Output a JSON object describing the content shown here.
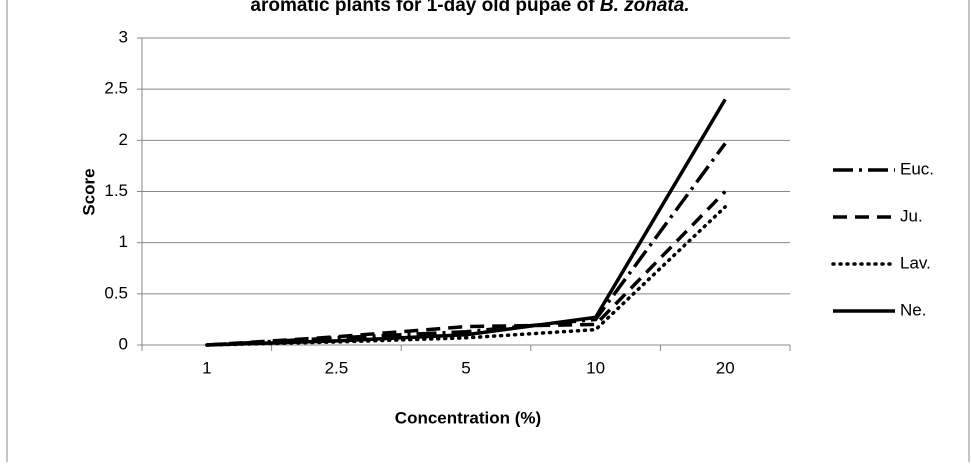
{
  "chart_data": {
    "type": "line",
    "title": "aromatic plants for 1-day old pupae of",
    "title_species": "B. zonata.",
    "x_label": "Concentration (%)",
    "y_label": "Score",
    "categories": [
      "1",
      "2.5",
      "5",
      "10",
      "20"
    ],
    "series": [
      {
        "name": "Euc.",
        "color": "#000000",
        "dash": "20,6,3,6",
        "values": [
          0,
          0.07,
          0.13,
          0.25,
          1.97
        ]
      },
      {
        "name": "Ju.",
        "color": "#000000",
        "dash": "14,8",
        "values": [
          0,
          0.08,
          0.18,
          0.2,
          1.5
        ]
      },
      {
        "name": "Lav.",
        "color": "#000000",
        "dash": "1,6",
        "values": [
          0,
          0.03,
          0.07,
          0.15,
          1.35
        ]
      },
      {
        "name": "Ne.",
        "color": "#000000",
        "dash": "",
        "values": [
          0,
          0.04,
          0.1,
          0.27,
          2.4
        ]
      }
    ],
    "ylim": [
      0,
      3
    ],
    "yticks": [
      0,
      0.5,
      1,
      1.5,
      2,
      2.5,
      3
    ],
    "grid": true,
    "legend": "right"
  }
}
